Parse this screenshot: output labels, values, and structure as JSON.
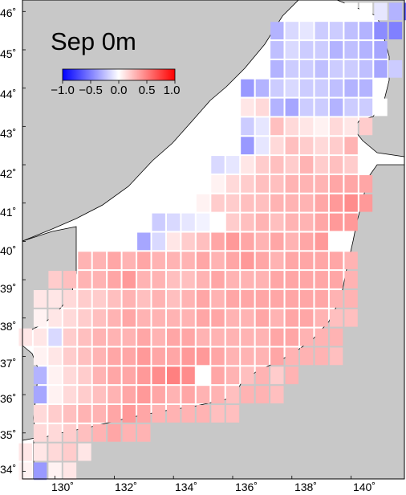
{
  "title": "Sep 0m",
  "colorbar": {
    "ticks": [
      "−1.0",
      "−0.5",
      "0.0",
      "0.5",
      "1.0"
    ],
    "min": -1.0,
    "max": 1.0,
    "low_color": "#0000ff",
    "mid_color": "#ffffff",
    "high_color": "#ff0000"
  },
  "axes": {
    "lat_labels": [
      "34˚",
      "35˚",
      "36˚",
      "37˚",
      "38˚",
      "39˚",
      "40˚",
      "41˚",
      "42˚",
      "43˚",
      "44˚",
      "45˚",
      "46˚"
    ],
    "lon_labels": [
      "130˚",
      "132˚",
      "134˚",
      "136˚",
      "138˚",
      "140˚"
    ],
    "lat_range": [
      33.8,
      46.3
    ],
    "lon_range": [
      128.9,
      141.8
    ]
  },
  "colors": {
    "land": "#c8c8c8",
    "coast": "#000000",
    "sea_gap": "#ffffff"
  },
  "chart_data": {
    "type": "heatmap",
    "title": "Sep 0m",
    "value_range": [
      -1.0,
      1.0
    ],
    "cell_size_deg": [
      0.5,
      0.5
    ],
    "rows": [
      {
        "lat": 46.0,
        "lon_start": 140.0,
        "values": [
          0.0,
          0.0,
          -0.1,
          -0.3,
          -0.6
        ]
      },
      {
        "lat": 45.5,
        "lon_start": 137.5,
        "values": [
          -0.3,
          -0.15,
          -0.1,
          -0.2,
          -0.2,
          -0.25,
          -0.3,
          -0.45,
          -0.5
        ]
      },
      {
        "lat": 45.0,
        "lon_start": 137.5,
        "values": [
          -0.25,
          -0.15,
          -0.2,
          -0.2,
          -0.3,
          -0.25,
          -0.3,
          -0.35
        ]
      },
      {
        "lat": 44.5,
        "lon_start": 137.5,
        "values": [
          -0.3,
          -0.2,
          -0.2,
          -0.25,
          -0.2,
          -0.2,
          -0.25,
          -0.35,
          -0.2
        ]
      },
      {
        "lat": 44.0,
        "lon_start": 136.5,
        "values": [
          -0.4,
          -0.3,
          -0.2,
          -0.15,
          -0.2,
          -0.2,
          -0.25,
          -0.3,
          -0.3
        ]
      },
      {
        "lat": 43.5,
        "lon_start": 136.5,
        "values": [
          0.1,
          0.15,
          -0.3,
          -0.35,
          -0.2,
          -0.2,
          -0.3,
          -0.2,
          -0.2,
          0.0
        ]
      },
      {
        "lat": 43.0,
        "lon_start": 136.5,
        "values": [
          -0.2,
          -0.1,
          0.25,
          0.15,
          0.1,
          0.05,
          0.15,
          0.1,
          0.2
        ]
      },
      {
        "lat": 42.5,
        "lon_start": 136.5,
        "values": [
          -0.4,
          -0.1,
          0.15,
          0.25,
          0.2,
          0.15,
          0.2,
          0.3
        ]
      },
      {
        "lat": 42.0,
        "lon_start": 135.5,
        "values": [
          -0.15,
          -0.1,
          0.1,
          0.2,
          0.25,
          0.2,
          0.3,
          0.2,
          0.25,
          0.2
        ]
      },
      {
        "lat": 41.5,
        "lon_start": 135.5,
        "values": [
          0.05,
          0.15,
          0.2,
          0.25,
          0.25,
          0.3,
          0.3,
          0.3,
          0.35,
          0.35,
          0.35
        ]
      },
      {
        "lat": 41.0,
        "lon_start": 135.0,
        "values": [
          0.05,
          0.2,
          0.2,
          0.25,
          0.25,
          0.3,
          0.3,
          0.3,
          0.35,
          0.4,
          0.45,
          0.4
        ]
      },
      {
        "lat": 40.5,
        "lon_start": 133.5,
        "values": [
          -0.2,
          -0.15,
          -0.1,
          -0.05,
          0.0,
          0.2,
          0.25,
          0.3,
          0.25,
          0.3,
          0.3,
          0.35,
          0.4,
          0.4
        ]
      },
      {
        "lat": 40.0,
        "lon_start": 133.0,
        "values": [
          -0.35,
          -0.15,
          0.1,
          0.2,
          0.25,
          0.35,
          0.4,
          0.35,
          0.3,
          0.35,
          0.3,
          0.35,
          0.4
        ]
      },
      {
        "lat": 39.5,
        "lon_start": 131.0,
        "values": [
          0.3,
          0.3,
          0.35,
          0.3,
          0.35,
          0.3,
          0.3,
          0.3,
          0.35,
          0.3,
          0.35,
          0.4,
          0.35,
          0.3,
          0.35,
          0.35,
          0.35,
          0.35,
          0.3
        ]
      },
      {
        "lat": 39.0,
        "lon_start": 130.0,
        "values": [
          0.2,
          0.25,
          0.3,
          0.3,
          0.35,
          0.4,
          0.3,
          0.3,
          0.25,
          0.25,
          0.3,
          0.35,
          0.3,
          0.3,
          0.3,
          0.35,
          0.35,
          0.35,
          0.35,
          0.35,
          0.3
        ]
      },
      {
        "lat": 38.5,
        "lon_start": 129.5,
        "values": [
          0.1,
          0.1,
          0.15,
          0.2,
          0.2,
          0.25,
          0.3,
          0.25,
          0.3,
          0.25,
          0.3,
          0.35,
          0.3,
          0.35,
          0.35,
          0.35,
          0.35,
          0.35,
          0.35,
          0.35,
          0.3,
          0.3
        ]
      },
      {
        "lat": 38.0,
        "lon_start": 129.5,
        "values": [
          0.05,
          0.1,
          0.15,
          0.2,
          0.25,
          0.3,
          0.35,
          0.3,
          0.3,
          0.3,
          0.3,
          0.35,
          0.35,
          0.3,
          0.3,
          0.35,
          0.3,
          0.35,
          0.35,
          0.3,
          0.25,
          0.25
        ]
      },
      {
        "lat": 37.5,
        "lon_start": 129.0,
        "values": [
          0.1,
          0.1,
          -0.15,
          0.2,
          0.25,
          0.3,
          0.3,
          0.3,
          0.35,
          0.3,
          0.35,
          0.35,
          0.3,
          0.3,
          0.3,
          0.3,
          0.3,
          0.35,
          0.35,
          0.3,
          0.3,
          0.3
        ]
      },
      {
        "lat": 37.0,
        "lon_start": 129.5,
        "values": [
          0.05,
          0.1,
          0.2,
          0.25,
          0.3,
          0.35,
          0.35,
          0.4,
          0.35,
          0.35,
          0.4,
          0.4,
          0.35,
          0.3,
          0.3,
          0.3,
          0.35,
          0.3,
          0.3,
          0.3,
          0.25
        ]
      },
      {
        "lat": 36.5,
        "lon_start": 129.5,
        "values": [
          -0.3,
          0.05,
          0.15,
          0.2,
          0.3,
          0.35,
          0.35,
          0.4,
          0.45,
          0.5,
          0.45,
          0.0,
          0.35,
          0.3,
          0.25,
          0.3,
          0.2,
          0.3
        ]
      },
      {
        "lat": 36.0,
        "lon_start": 129.5,
        "values": [
          -0.35,
          0.05,
          0.15,
          0.2,
          0.25,
          0.3,
          0.35,
          0.4,
          0.35,
          0.3,
          0.35,
          0.3,
          0.3,
          0.25,
          0.3,
          0.3,
          0.25
        ]
      },
      {
        "lat": 35.5,
        "lon_start": 129.5,
        "values": [
          0.15,
          0.2,
          0.25,
          0.3,
          0.3,
          0.35,
          0.4,
          0.35,
          0.3,
          0.3,
          0.3,
          0.3,
          0.25,
          0.25
        ]
      },
      {
        "lat": 35.0,
        "lon_start": 129.5,
        "values": [
          0.15,
          0.15,
          0.2,
          0.25,
          0.3,
          0.35,
          0.3,
          0.3
        ]
      },
      {
        "lat": 34.5,
        "lon_start": 129.0,
        "values": [
          0.1,
          0.1,
          0.15,
          0.2,
          0.1
        ]
      },
      {
        "lat": 34.0,
        "lon_start": 129.0,
        "values": [
          0.05,
          -0.4,
          0.05,
          0.1
        ]
      }
    ]
  }
}
